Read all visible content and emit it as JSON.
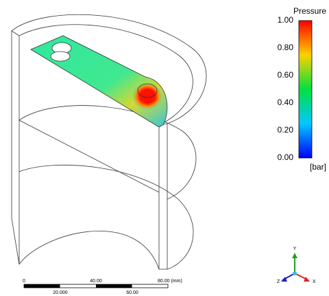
{
  "legend": {
    "title": "Pressure",
    "ticks": [
      "1.00",
      "0.80",
      "0.60",
      "0.40",
      "0.20",
      "0.00"
    ],
    "unit": "[bar]"
  },
  "scale_bar": {
    "top_labels": [
      "0",
      "40.00",
      "80.00 (mm)"
    ],
    "bottom_labels": [
      "20.000",
      "60.00"
    ]
  },
  "axes": {
    "y": "Y",
    "z": "Z",
    "x": "X"
  }
}
